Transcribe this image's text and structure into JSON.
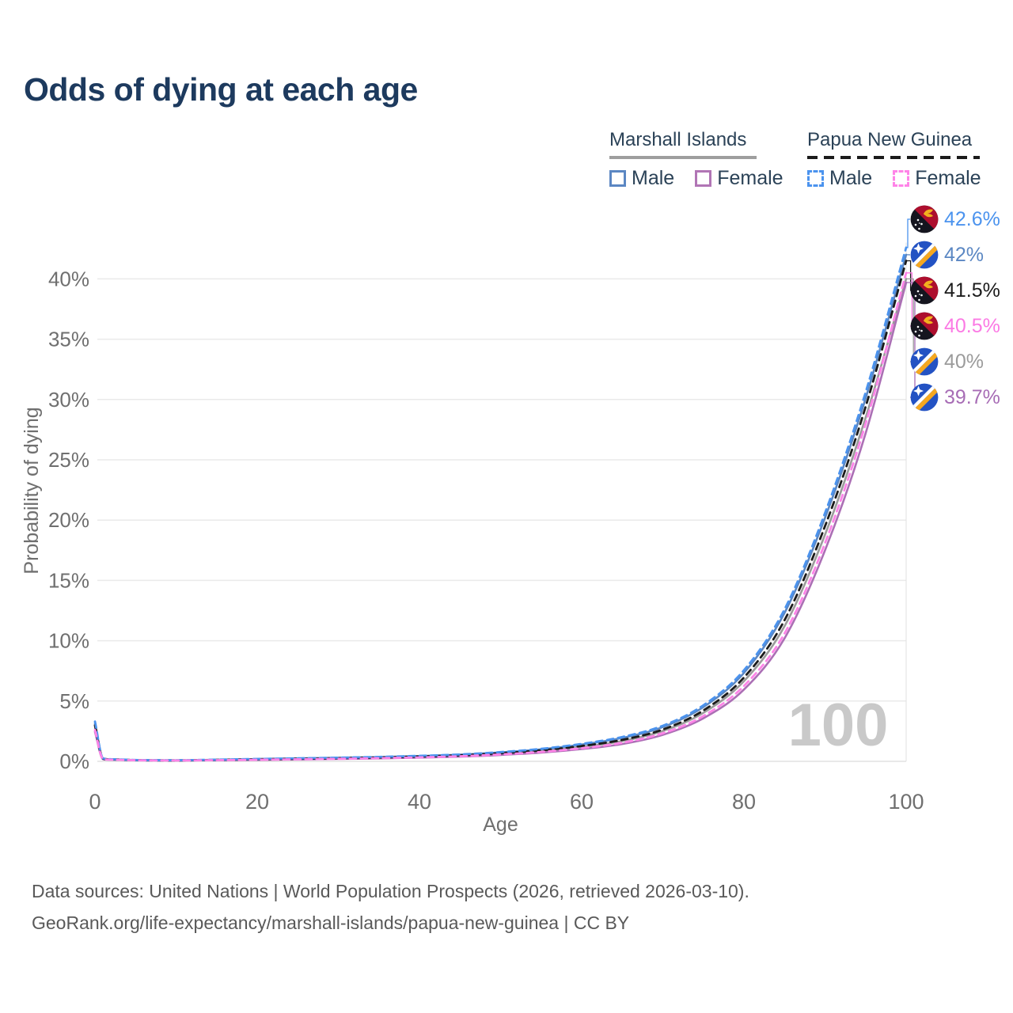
{
  "title": "Odds of dying at each age",
  "legend": {
    "groups": [
      {
        "name": "Marshall Islands",
        "underline_style": "solid",
        "underline_color": "#9e9e9e",
        "items": [
          {
            "label": "Male",
            "color": "#5b87c3",
            "dash": false
          },
          {
            "label": "Female",
            "color": "#b175b5",
            "dash": false
          }
        ]
      },
      {
        "name": "Papua New Guinea",
        "underline_style": "dashed",
        "underline_color": "#1b1b1b",
        "items": [
          {
            "label": "Male",
            "color": "#4b93ee",
            "dash": true
          },
          {
            "label": "Female",
            "color": "#ff84e8",
            "dash": true
          }
        ]
      }
    ]
  },
  "chart_data": {
    "type": "line",
    "title": "Odds of dying at each age",
    "xlabel": "Age",
    "ylabel": "Probability of dying",
    "xlim": [
      0,
      100
    ],
    "ylim": [
      0,
      45
    ],
    "x_ticks": [
      0,
      20,
      40,
      60,
      80,
      100
    ],
    "y_ticks": [
      0,
      5,
      10,
      15,
      20,
      25,
      30,
      35,
      40
    ],
    "y_tick_suffix": "%",
    "grid": "horizontal",
    "hover_age": "100",
    "ages": [
      0,
      1,
      2,
      5,
      10,
      15,
      20,
      25,
      30,
      35,
      40,
      45,
      50,
      55,
      60,
      65,
      70,
      75,
      80,
      85,
      90,
      95,
      100
    ],
    "series": [
      {
        "key": "mi_total",
        "name": "Marshall Islands both sexes",
        "color": "#9b9b9b",
        "dash": false,
        "values": [
          2.9,
          0.21,
          0.15,
          0.095,
          0.075,
          0.11,
          0.16,
          0.2,
          0.25,
          0.3,
          0.38,
          0.47,
          0.64,
          0.86,
          1.2,
          1.68,
          2.52,
          4.02,
          6.65,
          11.2,
          18.8,
          28.5,
          40.0
        ],
        "end_value_at_100": "40%"
      },
      {
        "key": "mi_male",
        "name": "Marshall Islands male",
        "color": "#5b87c3",
        "dash": false,
        "values": [
          3.15,
          0.23,
          0.17,
          0.1,
          0.085,
          0.13,
          0.19,
          0.24,
          0.29,
          0.35,
          0.44,
          0.55,
          0.74,
          1.0,
          1.39,
          1.94,
          2.84,
          4.5,
          7.33,
          12.3,
          20.2,
          30.1,
          42.0
        ],
        "end_value_at_100": "42%"
      },
      {
        "key": "mi_female",
        "name": "Marshall Islands female",
        "color": "#ab6fb5",
        "dash": false,
        "values": [
          2.45,
          0.18,
          0.13,
          0.085,
          0.065,
          0.09,
          0.12,
          0.16,
          0.2,
          0.24,
          0.31,
          0.39,
          0.53,
          0.72,
          1.02,
          1.44,
          2.2,
          3.57,
          5.95,
          10.2,
          17.5,
          27.2,
          39.7
        ],
        "end_value_at_100": "39.7%"
      },
      {
        "key": "png_total",
        "name": "Papua New Guinea both sexes",
        "color": "#1b1b1b",
        "dash": true,
        "values": [
          3.0,
          0.22,
          0.16,
          0.1,
          0.08,
          0.12,
          0.17,
          0.21,
          0.26,
          0.32,
          0.4,
          0.5,
          0.67,
          0.91,
          1.27,
          1.78,
          2.64,
          4.22,
          6.95,
          11.7,
          19.5,
          29.4,
          41.5
        ],
        "end_value_at_100": "41.5%"
      },
      {
        "key": "png_male",
        "name": "Papua New Guinea male",
        "color": "#4b93ee",
        "dash": true,
        "values": [
          3.3,
          0.25,
          0.18,
          0.11,
          0.09,
          0.14,
          0.2,
          0.25,
          0.3,
          0.37,
          0.46,
          0.57,
          0.77,
          1.04,
          1.45,
          2.02,
          2.95,
          4.65,
          7.55,
          12.6,
          20.6,
          30.6,
          42.6
        ],
        "end_value_at_100": "42.6%"
      },
      {
        "key": "png_female",
        "name": "Papua New Guinea female",
        "color": "#ff84e8",
        "dash": true,
        "values": [
          2.6,
          0.2,
          0.14,
          0.09,
          0.07,
          0.1,
          0.13,
          0.17,
          0.21,
          0.26,
          0.33,
          0.42,
          0.57,
          0.78,
          1.09,
          1.54,
          2.33,
          3.76,
          6.25,
          10.6,
          18.1,
          28.0,
          40.5
        ],
        "end_value_at_100": "40.5%"
      }
    ]
  },
  "end_labels": [
    {
      "value": "42.6%",
      "color": "#4b93ee",
      "flag": "png",
      "series": "png_male"
    },
    {
      "value": "42%",
      "color": "#5b87c3",
      "flag": "mhl",
      "series": "mi_male"
    },
    {
      "value": "41.5%",
      "color": "#1b1b1b",
      "flag": "png",
      "series": "png_total"
    },
    {
      "value": "40.5%",
      "color": "#fb7ae4",
      "flag": "png",
      "series": "png_female"
    },
    {
      "value": "40%",
      "color": "#9b9b9b",
      "flag": "mhl",
      "series": "mi_total"
    },
    {
      "value": "39.7%",
      "color": "#a76cb5",
      "flag": "mhl",
      "series": "mi_female"
    }
  ],
  "colors": {
    "title": "#1d3a5e",
    "axis_text": "#6f6f6f",
    "gridline": "#eaeaea",
    "watermark": "#c9c9c9",
    "footer": "#595959"
  },
  "footer": {
    "line1": "Data sources: United Nations | World Population Prospects (2026, retrieved 2026-03-10).",
    "line2": "GeoRank.org/life-expectancy/marshall-islands/papua-new-guinea | CC BY"
  }
}
